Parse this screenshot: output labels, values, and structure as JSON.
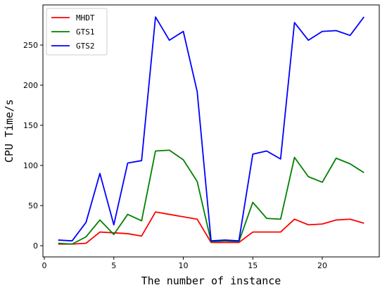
{
  "chart_data": {
    "type": "line",
    "xlabel": "The number of instance",
    "ylabel": "CPU Time/s",
    "xlim": [
      -0.1,
      24.1
    ],
    "ylim": [
      -14,
      300
    ],
    "x_ticks": [
      0,
      5,
      10,
      15,
      20
    ],
    "y_ticks": [
      0,
      50,
      100,
      150,
      200,
      250
    ],
    "legend_position": "top-left",
    "grid": false,
    "x": [
      1,
      2,
      3,
      4,
      5,
      6,
      7,
      8,
      9,
      10,
      11,
      12,
      13,
      14,
      15,
      16,
      17,
      18,
      19,
      20,
      21,
      22,
      23
    ],
    "series": [
      {
        "name": "MHDT",
        "color": "#ff0000",
        "values": [
          2,
          2,
          3,
          17,
          16,
          15,
          12,
          42,
          39,
          36,
          33,
          4,
          4,
          4,
          17,
          17,
          17,
          33,
          26,
          27,
          32,
          33,
          28
        ]
      },
      {
        "name": "GTS1",
        "color": "#008000",
        "values": [
          3,
          2,
          11,
          32,
          14,
          39,
          31,
          118,
          119,
          107,
          80,
          5,
          6,
          5,
          54,
          34,
          33,
          110,
          86,
          79,
          109,
          102,
          91
        ]
      },
      {
        "name": "GTS2",
        "color": "#0000ff",
        "values": [
          7,
          6,
          29,
          90,
          26,
          103,
          106,
          285,
          256,
          267,
          192,
          6,
          7,
          6,
          114,
          118,
          108,
          278,
          256,
          267,
          268,
          262,
          285
        ]
      }
    ]
  }
}
